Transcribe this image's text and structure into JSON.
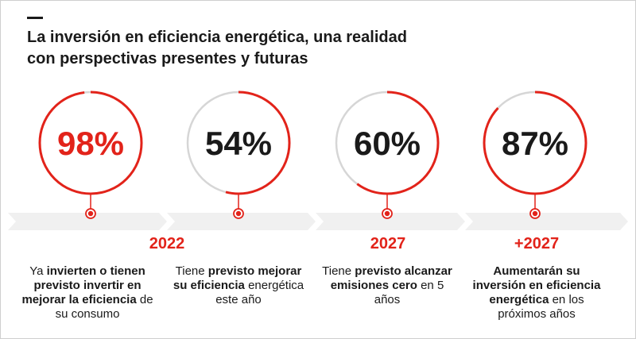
{
  "title": {
    "line1": "La inversión en eficiencia energética, una realidad",
    "line2": "con perspectivas presentes y futuras"
  },
  "colors": {
    "accent": "#e2231a",
    "track": "#d6d6d6",
    "text": "#1a1a1a",
    "band": "#f0f0f0"
  },
  "chart_data": {
    "type": "pie",
    "items": [
      {
        "value": 98,
        "label": "98%",
        "highlight": true
      },
      {
        "value": 54,
        "label": "54%",
        "highlight": false
      },
      {
        "value": 60,
        "label": "60%",
        "highlight": false
      },
      {
        "value": 87,
        "label": "87%",
        "highlight": false
      }
    ]
  },
  "years": {
    "y2022": "2022",
    "y2027": "2027",
    "y2027plus": "+2027"
  },
  "descriptions": {
    "d1": {
      "a": "Ya ",
      "b": "invierten o tienen previsto invertir en mejorar la eficiencia",
      "c": " de su consumo"
    },
    "d2": {
      "a": "Tiene ",
      "b": "previsto mejorar su eficiencia",
      "c": " energética este año"
    },
    "d3": {
      "a": "Tiene ",
      "b": "previsto alcanzar emisiones cero",
      "c": " en 5 años"
    },
    "d4": {
      "a": "",
      "b": "Aumentarán su inversión en eficiencia energética",
      "c": " en los próximos años"
    }
  }
}
